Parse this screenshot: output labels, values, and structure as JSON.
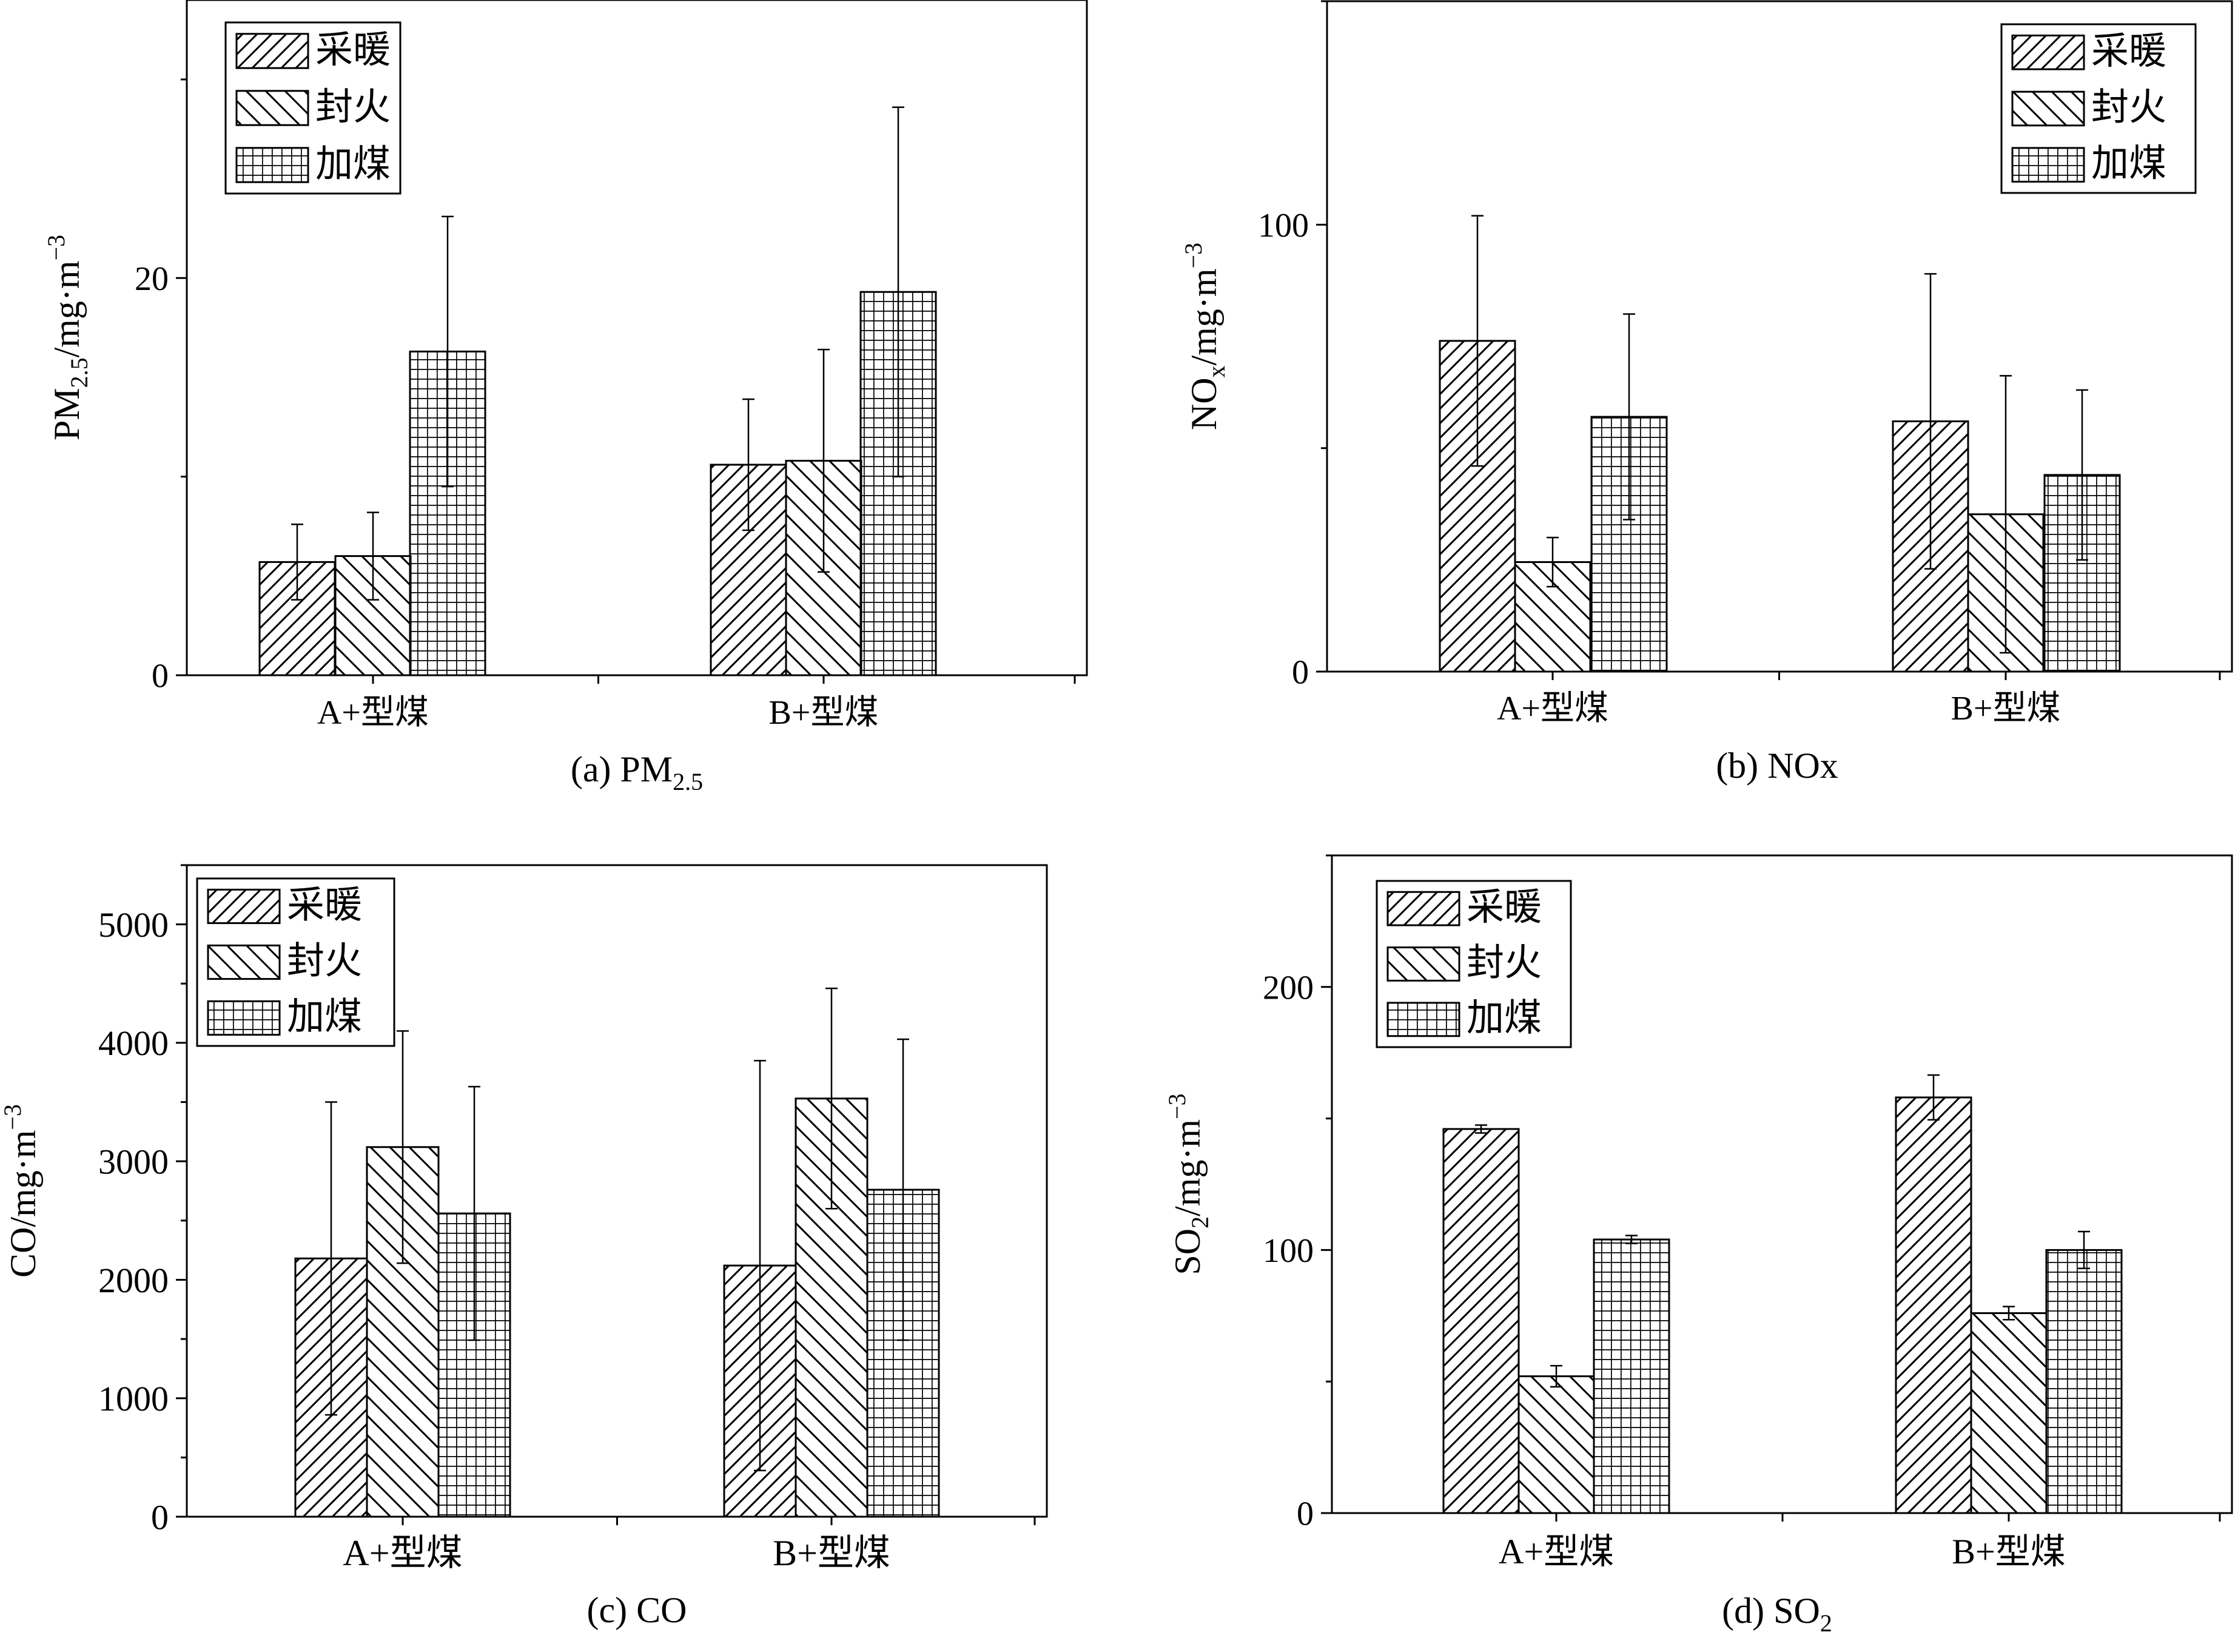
{
  "legend_labels": [
    "采暖",
    "封火",
    "加煤"
  ],
  "chart_data": [
    {
      "type": "bar",
      "caption": "(a) PM",
      "caption_sub": "2.5",
      "ylabel": "PM",
      "ylabel_sub": "2.5",
      "ylabel_unit": "/mg·m",
      "ylabel_sup": "−3",
      "categories": [
        "A+型煤",
        "B+型煤"
      ],
      "ylim": [
        0,
        34
      ],
      "yticks": [
        0,
        20
      ],
      "series": [
        {
          "name": "采暖",
          "values": [
            5.7,
            10.6
          ],
          "errors": [
            1.9,
            3.3
          ]
        },
        {
          "name": "封火",
          "values": [
            6.0,
            10.8
          ],
          "errors": [
            2.2,
            5.6
          ]
        },
        {
          "name": "加煤",
          "values": [
            16.3,
            19.3
          ],
          "errors": [
            6.8,
            9.3
          ]
        }
      ],
      "legend": "top-left"
    },
    {
      "type": "bar",
      "caption": "(b) NOx",
      "caption_sub": "",
      "ylabel": "NO",
      "ylabel_sub": "x",
      "ylabel_unit": "/mg·m",
      "ylabel_sup": "−3",
      "categories": [
        "A+型煤",
        "B+型煤"
      ],
      "ylim": [
        0,
        150
      ],
      "yticks": [
        0,
        100
      ],
      "series": [
        {
          "name": "采暖",
          "values": [
            74,
            56
          ],
          "errors": [
            28,
            33
          ]
        },
        {
          "name": "封火",
          "values": [
            24.5,
            35.2
          ],
          "errors": [
            5.5,
            31
          ]
        },
        {
          "name": "加煤",
          "values": [
            57,
            44
          ],
          "errors": [
            23,
            19
          ]
        }
      ],
      "legend": "top-right"
    },
    {
      "type": "bar",
      "caption": "(c) CO",
      "caption_sub": "",
      "ylabel": "CO",
      "ylabel_sub": "",
      "ylabel_unit": "/mg·m",
      "ylabel_sup": "−3",
      "categories": [
        "A+型煤",
        "B+型煤"
      ],
      "ylim": [
        0,
        5500
      ],
      "yticks": [
        0,
        1000,
        2000,
        3000,
        4000,
        5000
      ],
      "series": [
        {
          "name": "采暖",
          "values": [
            2180,
            2120
          ],
          "errors": [
            1320,
            1730
          ]
        },
        {
          "name": "封火",
          "values": [
            3120,
            3530
          ],
          "errors": [
            980,
            930
          ]
        },
        {
          "name": "加煤",
          "values": [
            2560,
            2760
          ],
          "errors": [
            1070,
            1270
          ]
        }
      ],
      "legend": "top-left"
    },
    {
      "type": "bar",
      "caption": "(d) SO",
      "caption_sub": "2",
      "ylabel": "SO",
      "ylabel_sub": "2",
      "ylabel_unit": "/mg·m",
      "ylabel_sup": "−3",
      "categories": [
        "A+型煤",
        "B+型煤"
      ],
      "ylim": [
        0,
        250
      ],
      "yticks": [
        0,
        100,
        200
      ],
      "series": [
        {
          "name": "采暖",
          "values": [
            146,
            158
          ],
          "errors": [
            1.5,
            8.5
          ]
        },
        {
          "name": "封火",
          "values": [
            52,
            76
          ],
          "errors": [
            4,
            2.5
          ]
        },
        {
          "name": "加煤",
          "values": [
            104,
            100
          ],
          "errors": [
            1.5,
            7
          ]
        }
      ],
      "legend": "top-left"
    }
  ]
}
